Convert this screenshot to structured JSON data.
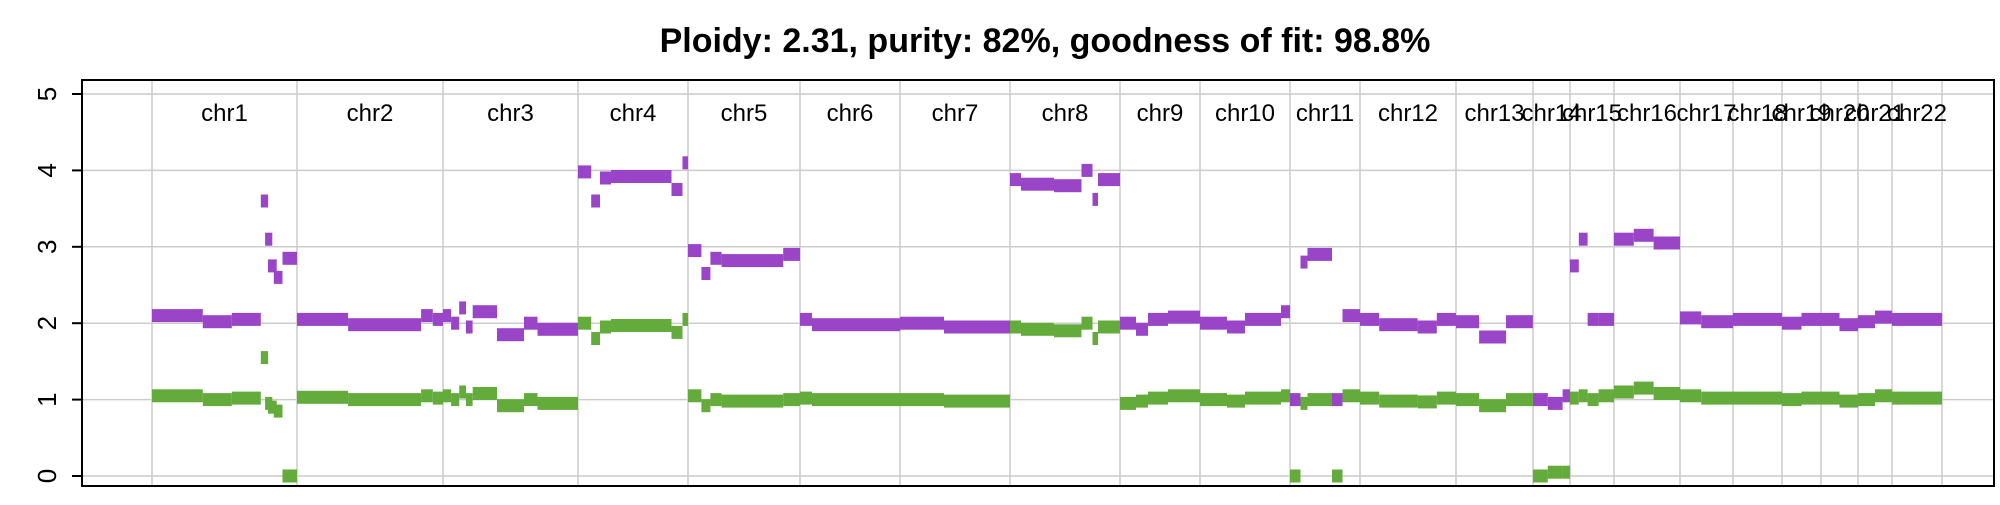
{
  "chart_data": {
    "type": "scatter",
    "title": "Ploidy: 2.31, purity: 82%, goodness of fit: 98.8%",
    "xlabel": "",
    "ylabel": "",
    "ylim": [
      0,
      5
    ],
    "yticks": [
      "0",
      "1",
      "2",
      "3",
      "4",
      "5"
    ],
    "grid": true,
    "colors": {
      "major": "#9a45c8",
      "minor": "#63ab3a",
      "grid": "#cccccc",
      "axis": "#000000"
    },
    "chromosomes": [
      {
        "name": "chr1",
        "segments": [
          {
            "s": 0,
            "e": 0.35,
            "major": 2.1,
            "minor": 1.05
          },
          {
            "s": 0.35,
            "e": 0.55,
            "major": 2.02,
            "minor": 1.0
          },
          {
            "s": 0.55,
            "e": 0.75,
            "major": 2.05,
            "minor": 1.02
          },
          {
            "s": 0.75,
            "e": 0.8,
            "major": 3.6,
            "minor": 1.55
          },
          {
            "s": 0.78,
            "e": 0.83,
            "major": 3.1,
            "minor": 0.95
          },
          {
            "s": 0.8,
            "e": 0.86,
            "major": 2.75,
            "minor": 0.9
          },
          {
            "s": 0.84,
            "e": 0.9,
            "major": 2.6,
            "minor": 0.85
          },
          {
            "s": 0.9,
            "e": 1.0,
            "major": 2.85,
            "minor": 0.0
          }
        ]
      },
      {
        "name": "chr2",
        "segments": [
          {
            "s": 0,
            "e": 0.35,
            "major": 2.05,
            "minor": 1.03
          },
          {
            "s": 0.35,
            "e": 0.85,
            "major": 1.98,
            "minor": 1.0
          },
          {
            "s": 0.85,
            "e": 0.93,
            "major": 2.1,
            "minor": 1.05
          },
          {
            "s": 0.93,
            "e": 1.0,
            "major": 2.05,
            "minor": 1.02
          }
        ]
      },
      {
        "name": "chr3",
        "segments": [
          {
            "s": 0,
            "e": 0.06,
            "major": 2.1,
            "minor": 1.05
          },
          {
            "s": 0.06,
            "e": 0.12,
            "major": 2.0,
            "minor": 1.0
          },
          {
            "s": 0.12,
            "e": 0.17,
            "major": 2.2,
            "minor": 1.1
          },
          {
            "s": 0.17,
            "e": 0.22,
            "major": 1.95,
            "minor": 1.0
          },
          {
            "s": 0.22,
            "e": 0.4,
            "major": 2.15,
            "minor": 1.08
          },
          {
            "s": 0.4,
            "e": 0.6,
            "major": 1.85,
            "minor": 0.92
          },
          {
            "s": 0.6,
            "e": 0.7,
            "major": 2.0,
            "minor": 1.0
          },
          {
            "s": 0.7,
            "e": 1.0,
            "major": 1.92,
            "minor": 0.95
          }
        ]
      },
      {
        "name": "chr4",
        "segments": [
          {
            "s": 0,
            "e": 0.12,
            "major": 3.98,
            "minor": 2.0
          },
          {
            "s": 0.12,
            "e": 0.2,
            "major": 3.6,
            "minor": 1.8
          },
          {
            "s": 0.2,
            "e": 0.3,
            "major": 3.9,
            "minor": 1.95
          },
          {
            "s": 0.3,
            "e": 0.85,
            "major": 3.92,
            "minor": 1.97
          },
          {
            "s": 0.85,
            "e": 0.95,
            "major": 3.75,
            "minor": 1.88
          },
          {
            "s": 0.95,
            "e": 1.0,
            "major": 4.1,
            "minor": 2.05
          }
        ]
      },
      {
        "name": "chr5",
        "segments": [
          {
            "s": 0,
            "e": 0.12,
            "major": 2.95,
            "minor": 1.05
          },
          {
            "s": 0.12,
            "e": 0.2,
            "major": 2.65,
            "minor": 0.92
          },
          {
            "s": 0.2,
            "e": 0.3,
            "major": 2.85,
            "minor": 1.0
          },
          {
            "s": 0.3,
            "e": 0.85,
            "major": 2.82,
            "minor": 0.98
          },
          {
            "s": 0.85,
            "e": 1.0,
            "major": 2.9,
            "minor": 1.0
          }
        ]
      },
      {
        "name": "chr6",
        "segments": [
          {
            "s": 0,
            "e": 0.12,
            "major": 2.05,
            "minor": 1.02
          },
          {
            "s": 0.12,
            "e": 1.0,
            "major": 1.98,
            "minor": 1.0
          }
        ]
      },
      {
        "name": "chr7",
        "segments": [
          {
            "s": 0,
            "e": 0.4,
            "major": 2.0,
            "minor": 1.0
          },
          {
            "s": 0.4,
            "e": 1.0,
            "major": 1.95,
            "minor": 0.98
          }
        ]
      },
      {
        "name": "chr8",
        "segments": [
          {
            "s": 0,
            "e": 0.1,
            "major": 3.88,
            "minor": 1.95
          },
          {
            "s": 0.1,
            "e": 0.4,
            "major": 3.82,
            "minor": 1.92
          },
          {
            "s": 0.4,
            "e": 0.65,
            "major": 3.8,
            "minor": 1.9
          },
          {
            "s": 0.65,
            "e": 0.75,
            "major": 4.0,
            "minor": 2.0
          },
          {
            "s": 0.75,
            "e": 0.8,
            "major": 3.62,
            "minor": 1.8
          },
          {
            "s": 0.8,
            "e": 1.0,
            "major": 3.88,
            "minor": 1.95
          }
        ]
      },
      {
        "name": "chr9",
        "segments": [
          {
            "s": 0,
            "e": 0.2,
            "major": 2.0,
            "minor": 0.95
          },
          {
            "s": 0.2,
            "e": 0.35,
            "major": 1.92,
            "minor": 0.98
          },
          {
            "s": 0.35,
            "e": 0.6,
            "major": 2.05,
            "minor": 1.02
          },
          {
            "s": 0.6,
            "e": 1.0,
            "major": 2.08,
            "minor": 1.05
          }
        ]
      },
      {
        "name": "chr10",
        "segments": [
          {
            "s": 0,
            "e": 0.3,
            "major": 2.0,
            "minor": 1.0
          },
          {
            "s": 0.3,
            "e": 0.5,
            "major": 1.95,
            "minor": 0.98
          },
          {
            "s": 0.5,
            "e": 0.9,
            "major": 2.05,
            "minor": 1.02
          },
          {
            "s": 0.9,
            "e": 1.0,
            "major": 2.15,
            "minor": 1.05
          }
        ]
      },
      {
        "name": "chr11",
        "segments": [
          {
            "s": 0,
            "e": 0.15,
            "major": 1.0,
            "minor": 0.0
          },
          {
            "s": 0.15,
            "e": 0.25,
            "major": 2.8,
            "minor": 0.95
          },
          {
            "s": 0.25,
            "e": 0.6,
            "major": 2.9,
            "minor": 1.0
          },
          {
            "s": 0.6,
            "e": 0.75,
            "major": 1.0,
            "minor": 0.0
          },
          {
            "s": 0.75,
            "e": 1.0,
            "major": 2.1,
            "minor": 1.05
          }
        ]
      },
      {
        "name": "chr12",
        "segments": [
          {
            "s": 0,
            "e": 0.2,
            "major": 2.05,
            "minor": 1.02
          },
          {
            "s": 0.2,
            "e": 0.6,
            "major": 1.98,
            "minor": 0.98
          },
          {
            "s": 0.6,
            "e": 0.8,
            "major": 1.95,
            "minor": 0.97
          },
          {
            "s": 0.8,
            "e": 1.0,
            "major": 2.05,
            "minor": 1.02
          }
        ]
      },
      {
        "name": "chr13",
        "segments": [
          {
            "s": 0,
            "e": 0.3,
            "major": 2.02,
            "minor": 1.0
          },
          {
            "s": 0.3,
            "e": 0.65,
            "major": 1.82,
            "minor": 0.92
          },
          {
            "s": 0.65,
            "e": 1.0,
            "major": 2.02,
            "minor": 1.0
          }
        ]
      },
      {
        "name": "chr14",
        "segments": [
          {
            "s": 0,
            "e": 0.4,
            "major": 1.0,
            "minor": 0.0
          },
          {
            "s": 0.4,
            "e": 0.8,
            "major": 0.95,
            "minor": 0.05
          },
          {
            "s": 0.8,
            "e": 1.0,
            "major": 1.05,
            "minor": 0.05
          }
        ]
      },
      {
        "name": "chr15",
        "segments": [
          {
            "s": 0,
            "e": 0.2,
            "major": 2.75,
            "minor": 1.02
          },
          {
            "s": 0.2,
            "e": 0.4,
            "major": 3.1,
            "minor": 1.05
          },
          {
            "s": 0.4,
            "e": 0.65,
            "major": 2.05,
            "minor": 1.0
          },
          {
            "s": 0.65,
            "e": 1.0,
            "major": 2.05,
            "minor": 1.05
          }
        ]
      },
      {
        "name": "chr16",
        "segments": [
          {
            "s": 0,
            "e": 0.3,
            "major": 3.1,
            "minor": 1.1
          },
          {
            "s": 0.3,
            "e": 0.6,
            "major": 3.15,
            "minor": 1.15
          },
          {
            "s": 0.6,
            "e": 1.0,
            "major": 3.05,
            "minor": 1.08
          }
        ]
      },
      {
        "name": "chr17",
        "segments": [
          {
            "s": 0,
            "e": 0.4,
            "major": 2.07,
            "minor": 1.05
          },
          {
            "s": 0.4,
            "e": 1.0,
            "major": 2.02,
            "minor": 1.02
          }
        ]
      },
      {
        "name": "chr18",
        "segments": [
          {
            "s": 0,
            "e": 0.5,
            "major": 2.05,
            "minor": 1.02
          },
          {
            "s": 0.5,
            "e": 1.0,
            "major": 2.05,
            "minor": 1.02
          }
        ]
      },
      {
        "name": "chr19",
        "segments": [
          {
            "s": 0,
            "e": 0.5,
            "major": 2.0,
            "minor": 1.0
          },
          {
            "s": 0.5,
            "e": 1.0,
            "major": 2.05,
            "minor": 1.02
          }
        ]
      },
      {
        "name": "chr20",
        "segments": [
          {
            "s": 0,
            "e": 0.5,
            "major": 2.05,
            "minor": 1.02
          },
          {
            "s": 0.5,
            "e": 1.0,
            "major": 1.98,
            "minor": 0.98
          }
        ]
      },
      {
        "name": "chr21",
        "segments": [
          {
            "s": 0,
            "e": 0.5,
            "major": 2.02,
            "minor": 1.0
          },
          {
            "s": 0.5,
            "e": 1.0,
            "major": 2.08,
            "minor": 1.05
          }
        ]
      },
      {
        "name": "chr22",
        "segments": [
          {
            "s": 0,
            "e": 1.0,
            "major": 2.05,
            "minor": 1.02
          }
        ]
      }
    ]
  }
}
